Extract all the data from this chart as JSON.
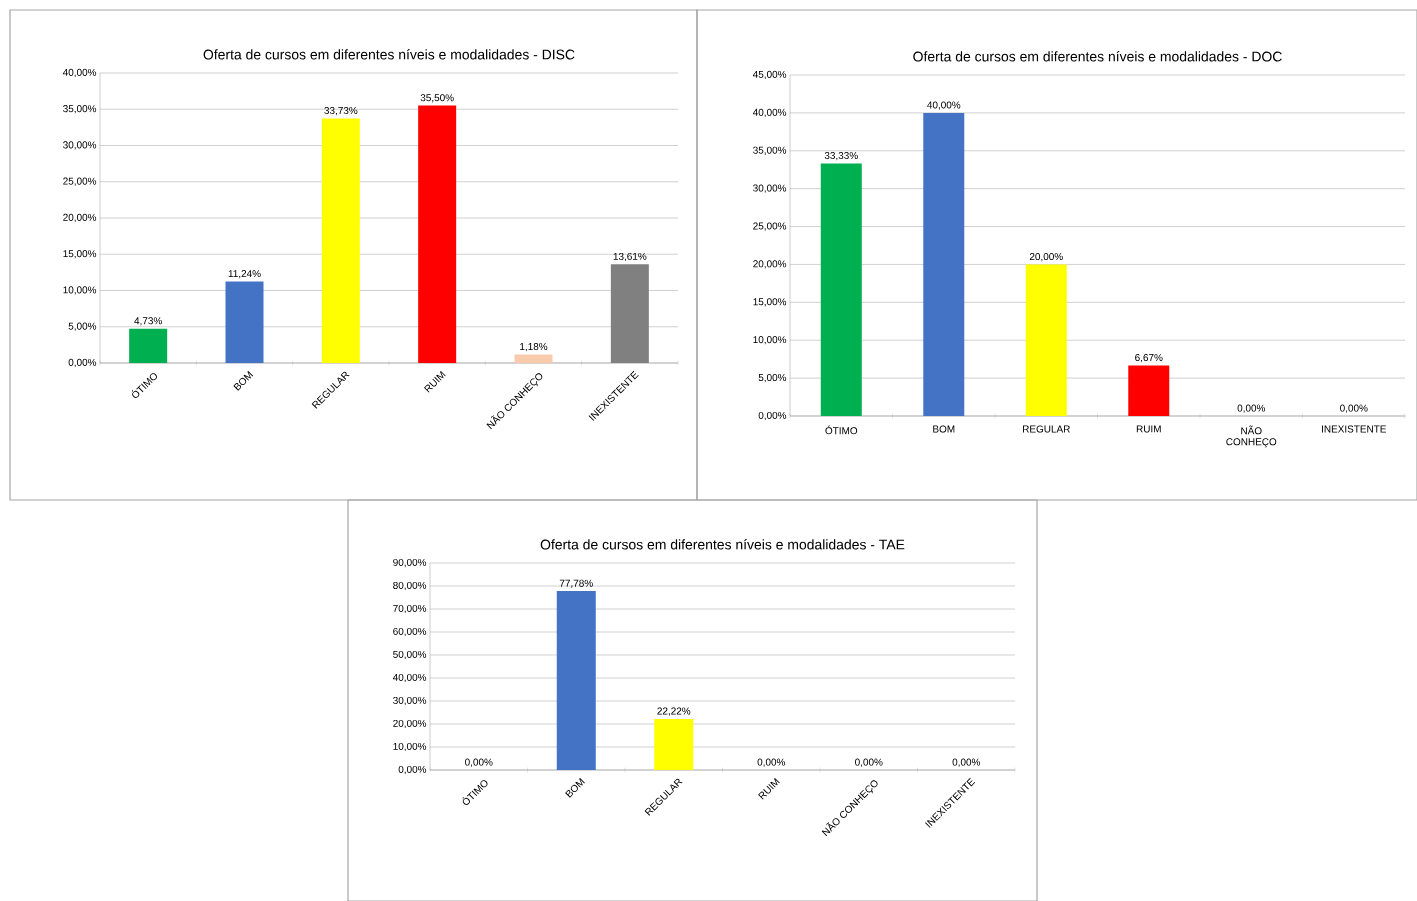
{
  "chart_data": [
    {
      "type": "bar",
      "title": "Oferta de cursos em diferentes níveis e modalidades - DISC",
      "categories": [
        "ÓTIMO",
        "BOM",
        "REGULAR",
        "RUIM",
        "NÃO CONHEÇO",
        "INEXISTENTE"
      ],
      "values": [
        4.73,
        11.24,
        33.73,
        35.5,
        1.18,
        13.61
      ],
      "colors": [
        "#00b050",
        "#4472c4",
        "#ffff00",
        "#ff0000",
        "#f8cbad",
        "#808080"
      ],
      "value_labels": [
        "4,73%",
        "11,24%",
        "33,73%",
        "35,50%",
        "1,18%",
        "13,61%"
      ],
      "ylim": [
        0,
        40
      ],
      "yticks": [
        {
          "value": 0,
          "label": "0,00%"
        },
        {
          "value": 5,
          "label": "5,00%"
        },
        {
          "value": 10,
          "label": "10,00%"
        },
        {
          "value": 15,
          "label": "15,00%"
        },
        {
          "value": 20,
          "label": "20,00%"
        },
        {
          "value": 25,
          "label": "25,00%"
        },
        {
          "value": 30,
          "label": "30,00%"
        },
        {
          "value": 35,
          "label": "35,00%"
        },
        {
          "value": 40,
          "label": "40,00%"
        }
      ],
      "grid": "y"
    },
    {
      "type": "bar",
      "title": "Oferta de cursos em diferentes níveis e modalidades - DOC",
      "categories": [
        "ÓTIMO",
        "BOM",
        "REGULAR",
        "RUIM",
        "NÃO CONHEÇO",
        "INEXISTENTE"
      ],
      "values": [
        33.33,
        40,
        20,
        6.67,
        0,
        0
      ],
      "colors": [
        "#00b050",
        "#4472c4",
        "#ffff00",
        "#ff0000",
        "#f8cbad",
        "#808080"
      ],
      "value_labels": [
        "33,33%",
        "40,00%",
        "20,00%",
        "6,67%",
        "0,00%",
        "0,00%"
      ],
      "ylim": [
        0,
        45
      ],
      "yticks": [
        {
          "value": 0,
          "label": "0,00%"
        },
        {
          "value": 5,
          "label": "5,00%"
        },
        {
          "value": 10,
          "label": "10,00%"
        },
        {
          "value": 15,
          "label": "15,00%"
        },
        {
          "value": 20,
          "label": "20,00%"
        },
        {
          "value": 25,
          "label": "25,00%"
        },
        {
          "value": 30,
          "label": "30,00%"
        },
        {
          "value": 35,
          "label": "35,00%"
        },
        {
          "value": 40,
          "label": "40,00%"
        },
        {
          "value": 45,
          "label": "45,00%"
        }
      ],
      "grid": "y"
    },
    {
      "type": "bar",
      "title": "Oferta de cursos em diferentes níveis e modalidades - TAE",
      "categories": [
        "ÓTIMO",
        "BOM",
        "REGULAR",
        "RUIM",
        "NÃO CONHEÇO",
        "INEXISTENTE"
      ],
      "values": [
        0,
        77.78,
        22.22,
        0,
        0,
        0
      ],
      "colors": [
        "#00b050",
        "#4472c4",
        "#ffff00",
        "#ff0000",
        "#f8cbad",
        "#808080"
      ],
      "value_labels": [
        "0,00%",
        "77,78%",
        "22,22%",
        "0,00%",
        "0,00%",
        "0,00%"
      ],
      "ylim": [
        0,
        90
      ],
      "yticks": [
        {
          "value": 0,
          "label": "0,00%"
        },
        {
          "value": 10,
          "label": "10,00%"
        },
        {
          "value": 20,
          "label": "20,00%"
        },
        {
          "value": 30,
          "label": "30,00%"
        },
        {
          "value": 40,
          "label": "40,00%"
        },
        {
          "value": 50,
          "label": "50,00%"
        },
        {
          "value": 60,
          "label": "60,00%"
        },
        {
          "value": 70,
          "label": "70,00%"
        },
        {
          "value": 80,
          "label": "80,00%"
        },
        {
          "value": 90,
          "label": "90,00%"
        }
      ],
      "grid": "y"
    }
  ]
}
